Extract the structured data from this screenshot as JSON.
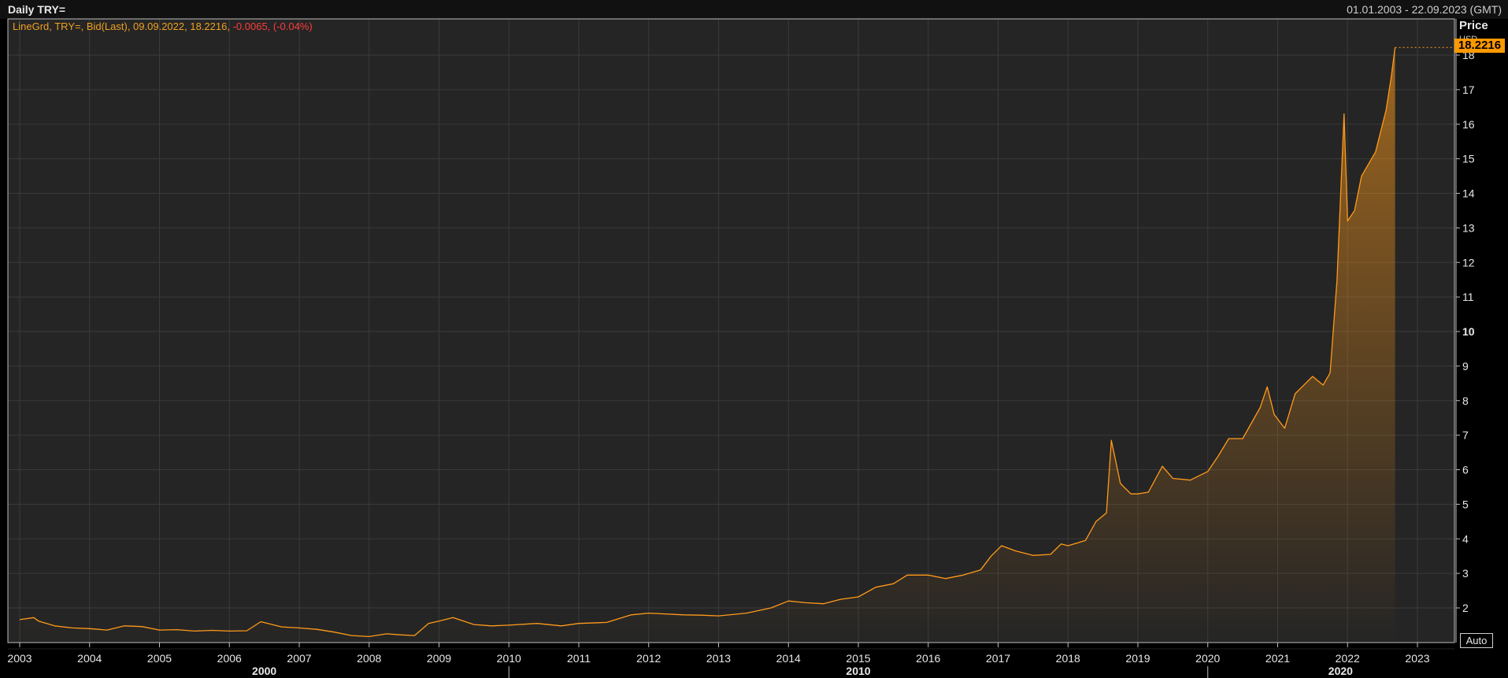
{
  "header": {
    "title": "Daily TRY=",
    "date_range": "01.01.2003 - 22.09.2023 (GMT)"
  },
  "legend": {
    "series_info": "LineGrd, TRY=, Bid(Last), 09.09.2022, 18.2216,",
    "change": "-0.0065, (-0.04%)"
  },
  "price_axis": {
    "label": "Price",
    "unit": "USD",
    "last_price": "18.2216",
    "auto_label": "Auto"
  },
  "colors": {
    "background": "#000000",
    "plot_background": "#252525",
    "grid": "#3a3a3a",
    "line": "#ff9a1a",
    "last_price_badge": "#ff9900",
    "negative_change": "#ff3b3b"
  },
  "chart_data": {
    "type": "area",
    "title": "Daily TRY=",
    "xlabel": "",
    "ylabel": "Price",
    "xlim": [
      2003.0,
      2023.75
    ],
    "ylim": [
      1,
      18.7
    ],
    "grid": true,
    "x_ticks": [
      "2003",
      "2004",
      "2005",
      "2006",
      "2007",
      "2008",
      "2009",
      "2010",
      "2011",
      "2012",
      "2013",
      "2014",
      "2015",
      "2016",
      "2017",
      "2018",
      "2019",
      "2020",
      "2021",
      "2022",
      "2023"
    ],
    "decade_ticks": [
      "2000",
      "2010",
      "2020"
    ],
    "y_ticks": [
      "2",
      "3",
      "4",
      "5",
      "6",
      "7",
      "8",
      "9",
      "10",
      "11",
      "12",
      "13",
      "14",
      "15",
      "16",
      "17",
      "18"
    ],
    "bold_y_tick": "10",
    "last_point": {
      "date": "09.09.2022",
      "value": 18.2216
    },
    "series": [
      {
        "name": "TRY=",
        "points": [
          [
            2003.0,
            1.66
          ],
          [
            2003.2,
            1.72
          ],
          [
            2003.27,
            1.62
          ],
          [
            2003.5,
            1.48
          ],
          [
            2003.75,
            1.42
          ],
          [
            2004.0,
            1.4
          ],
          [
            2004.25,
            1.36
          ],
          [
            2004.5,
            1.48
          ],
          [
            2004.75,
            1.46
          ],
          [
            2005.0,
            1.36
          ],
          [
            2005.25,
            1.37
          ],
          [
            2005.5,
            1.33
          ],
          [
            2005.75,
            1.35
          ],
          [
            2006.0,
            1.33
          ],
          [
            2006.25,
            1.34
          ],
          [
            2006.45,
            1.6
          ],
          [
            2006.75,
            1.45
          ],
          [
            2007.0,
            1.42
          ],
          [
            2007.25,
            1.38
          ],
          [
            2007.5,
            1.3
          ],
          [
            2007.75,
            1.2
          ],
          [
            2008.0,
            1.17
          ],
          [
            2008.25,
            1.25
          ],
          [
            2008.45,
            1.22
          ],
          [
            2008.65,
            1.2
          ],
          [
            2008.85,
            1.55
          ],
          [
            2009.0,
            1.62
          ],
          [
            2009.2,
            1.72
          ],
          [
            2009.5,
            1.52
          ],
          [
            2009.75,
            1.48
          ],
          [
            2010.0,
            1.5
          ],
          [
            2010.4,
            1.55
          ],
          [
            2010.75,
            1.48
          ],
          [
            2011.0,
            1.55
          ],
          [
            2011.4,
            1.58
          ],
          [
            2011.75,
            1.8
          ],
          [
            2012.0,
            1.85
          ],
          [
            2012.5,
            1.8
          ],
          [
            2012.75,
            1.79
          ],
          [
            2013.0,
            1.77
          ],
          [
            2013.4,
            1.85
          ],
          [
            2013.75,
            2.0
          ],
          [
            2014.0,
            2.2
          ],
          [
            2014.25,
            2.15
          ],
          [
            2014.5,
            2.12
          ],
          [
            2014.75,
            2.25
          ],
          [
            2015.0,
            2.32
          ],
          [
            2015.25,
            2.6
          ],
          [
            2015.5,
            2.7
          ],
          [
            2015.7,
            2.95
          ],
          [
            2016.0,
            2.95
          ],
          [
            2016.25,
            2.85
          ],
          [
            2016.5,
            2.95
          ],
          [
            2016.75,
            3.1
          ],
          [
            2016.9,
            3.5
          ],
          [
            2017.05,
            3.8
          ],
          [
            2017.25,
            3.65
          ],
          [
            2017.5,
            3.52
          ],
          [
            2017.75,
            3.55
          ],
          [
            2017.9,
            3.85
          ],
          [
            2018.0,
            3.8
          ],
          [
            2018.25,
            3.95
          ],
          [
            2018.4,
            4.5
          ],
          [
            2018.55,
            4.75
          ],
          [
            2018.62,
            6.85
          ],
          [
            2018.75,
            5.6
          ],
          [
            2018.9,
            5.3
          ],
          [
            2019.0,
            5.3
          ],
          [
            2019.15,
            5.35
          ],
          [
            2019.35,
            6.1
          ],
          [
            2019.5,
            5.75
          ],
          [
            2019.75,
            5.7
          ],
          [
            2020.0,
            5.95
          ],
          [
            2020.15,
            6.4
          ],
          [
            2020.3,
            6.9
          ],
          [
            2020.5,
            6.9
          ],
          [
            2020.75,
            7.8
          ],
          [
            2020.85,
            8.4
          ],
          [
            2020.95,
            7.6
          ],
          [
            2021.1,
            7.2
          ],
          [
            2021.25,
            8.2
          ],
          [
            2021.5,
            8.7
          ],
          [
            2021.65,
            8.45
          ],
          [
            2021.75,
            8.8
          ],
          [
            2021.85,
            11.5
          ],
          [
            2021.95,
            16.3
          ],
          [
            2022.0,
            13.2
          ],
          [
            2022.1,
            13.5
          ],
          [
            2022.2,
            14.5
          ],
          [
            2022.4,
            15.2
          ],
          [
            2022.55,
            16.4
          ],
          [
            2022.62,
            17.3
          ],
          [
            2022.68,
            18.2216
          ]
        ]
      }
    ]
  }
}
